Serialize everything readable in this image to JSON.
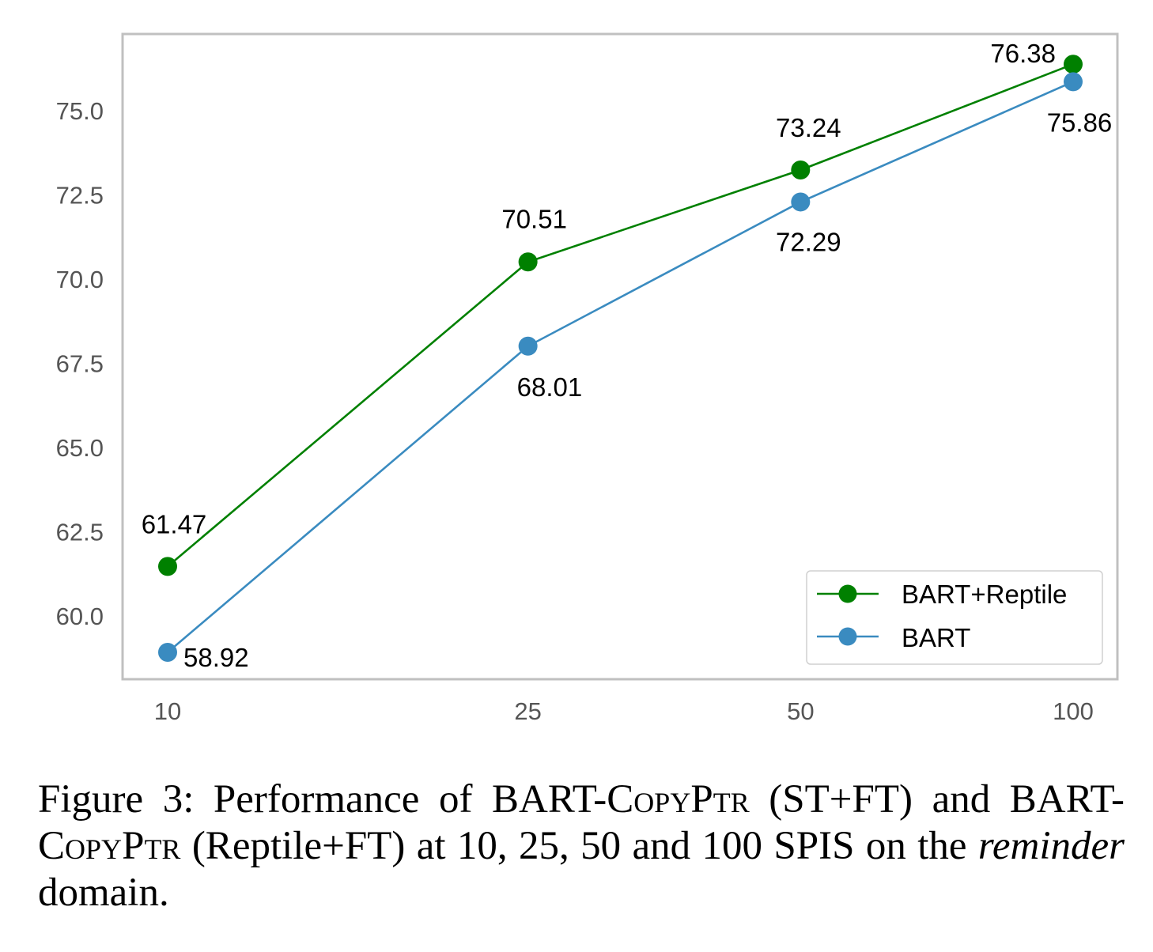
{
  "chart_data": {
    "type": "line",
    "x": [
      10,
      25,
      50,
      100
    ],
    "x_tick_labels": [
      "10",
      "25",
      "50",
      "100"
    ],
    "y_tick_labels": [
      "60.0",
      "62.5",
      "65.0",
      "67.5",
      "70.0",
      "72.5",
      "75.0"
    ],
    "y_ticks": [
      60.0,
      62.5,
      65.0,
      67.5,
      70.0,
      72.5,
      75.0
    ],
    "ylim": [
      58.0,
      77.2
    ],
    "x_scale": "log",
    "grid": false,
    "legend_position": "lower-right",
    "series": [
      {
        "name": "BART+Reptile",
        "color": "#008000",
        "values": [
          61.47,
          70.51,
          73.24,
          76.38
        ],
        "labels": [
          "61.47",
          "70.51",
          "73.24",
          "76.38"
        ]
      },
      {
        "name": "BART",
        "color": "#3a8bc0",
        "values": [
          58.92,
          68.01,
          72.29,
          75.86
        ],
        "labels": [
          "58.92",
          "68.01",
          "72.29",
          "75.86"
        ]
      }
    ]
  },
  "caption": {
    "prefix": "Figure 3: Performance of BART-",
    "c1": "C",
    "opy": "opy",
    "p1": "P",
    "tr1": "tr",
    "mid": " (ST+FT) and BART-",
    "c2": "C",
    "opy2": "opy",
    "p2": "P",
    "tr2": "tr",
    "rest": " (Reptile+FT) at 10, 25, 50 and 100 SPIS on the ",
    "domain": "reminder",
    "end": " domain."
  }
}
